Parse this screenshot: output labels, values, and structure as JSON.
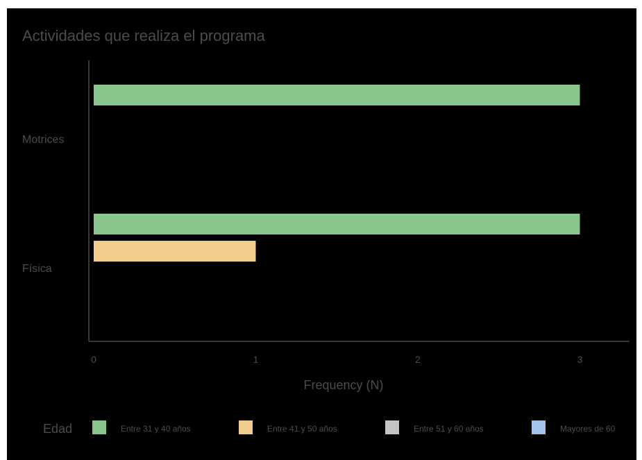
{
  "chart_data": {
    "type": "bar",
    "orientation": "horizontal",
    "title": "Actividades que realiza el programa",
    "xlabel": "Frequency (N)",
    "ylabel": "",
    "categories": [
      "Motrices",
      "Física"
    ],
    "xlim": [
      0,
      3.3
    ],
    "xticks": [
      0,
      1,
      2,
      3
    ],
    "grid": false,
    "legend_title": "Edad",
    "legend_position": "bottom",
    "series": [
      {
        "name": "Entre 31 y 40 años",
        "color": "#8ac68c",
        "values": [
          3,
          3
        ]
      },
      {
        "name": "Entre 41 y 50 años",
        "color": "#f2cc8a",
        "values": [
          0,
          1
        ]
      },
      {
        "name": "Entre 51 y 60 años",
        "color": "#c4c4c4",
        "values": [
          0,
          0
        ]
      },
      {
        "name": "Mayores de 60",
        "color": "#a4c2ee",
        "values": [
          0,
          0
        ]
      }
    ]
  }
}
